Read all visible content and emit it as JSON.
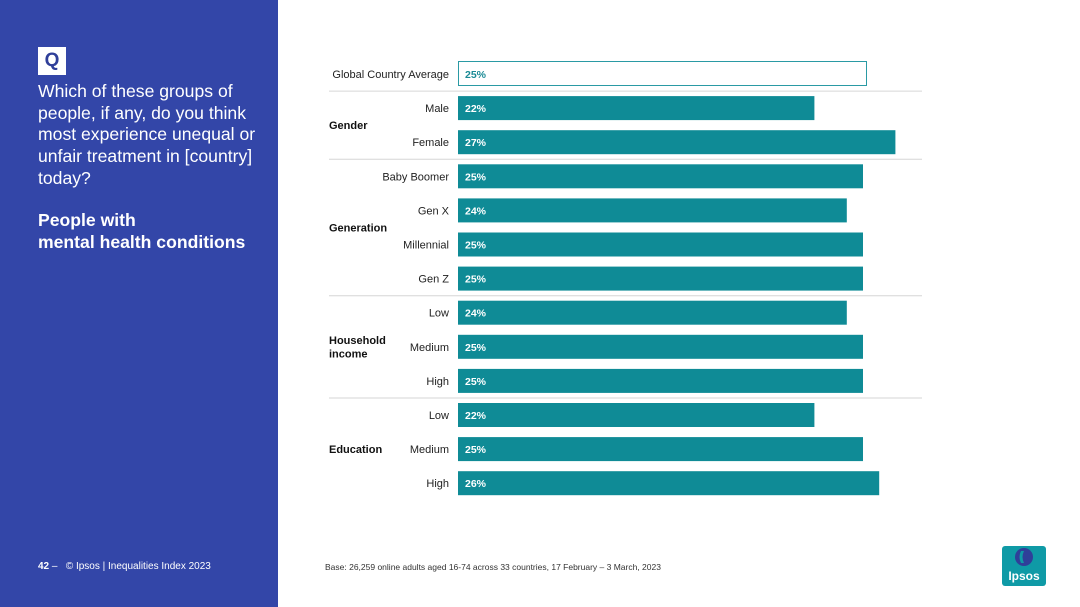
{
  "panel": {
    "q_badge": "Q",
    "question": "Which of these groups of people, if any, do you think most experience unequal or unfair treatment in [country] today?",
    "subtitle_line1": "People with",
    "subtitle_line2": "mental health conditions"
  },
  "footer": {
    "page_number": "42",
    "separator": "–",
    "source": "© Ipsos | Inequalities Index 2023",
    "base": "Base: 26,259 online adults aged 16-74 across 33 countries, 17 February – 3 March, 2023"
  },
  "logo": {
    "text": "Ipsos"
  },
  "colors": {
    "panel": "#3346a8",
    "bar": "#0f8b96",
    "average_border": "#2a9aa4",
    "average_text": "#1a8a95",
    "divider": "#d6d6d6"
  },
  "chart_data": {
    "type": "bar",
    "orientation": "horizontal",
    "unit": "%",
    "xlim": [
      0,
      30
    ],
    "average": {
      "label": "Global Country Average",
      "value": 25
    },
    "groups": [
      {
        "name": "Gender",
        "items": [
          {
            "label": "Male",
            "value": 22
          },
          {
            "label": "Female",
            "value": 27
          }
        ]
      },
      {
        "name": "Generation",
        "items": [
          {
            "label": "Baby Boomer",
            "value": 25
          },
          {
            "label": "Gen X",
            "value": 24
          },
          {
            "label": "Millennial",
            "value": 25
          },
          {
            "label": "Gen Z",
            "value": 25
          }
        ]
      },
      {
        "name": "Household income",
        "items": [
          {
            "label": "Low",
            "value": 24
          },
          {
            "label": "Medium",
            "value": 25
          },
          {
            "label": "High",
            "value": 25
          }
        ]
      },
      {
        "name": "Education",
        "items": [
          {
            "label": "Low",
            "value": 22
          },
          {
            "label": "Medium",
            "value": 25
          },
          {
            "label": "High",
            "value": 26
          }
        ]
      }
    ]
  }
}
